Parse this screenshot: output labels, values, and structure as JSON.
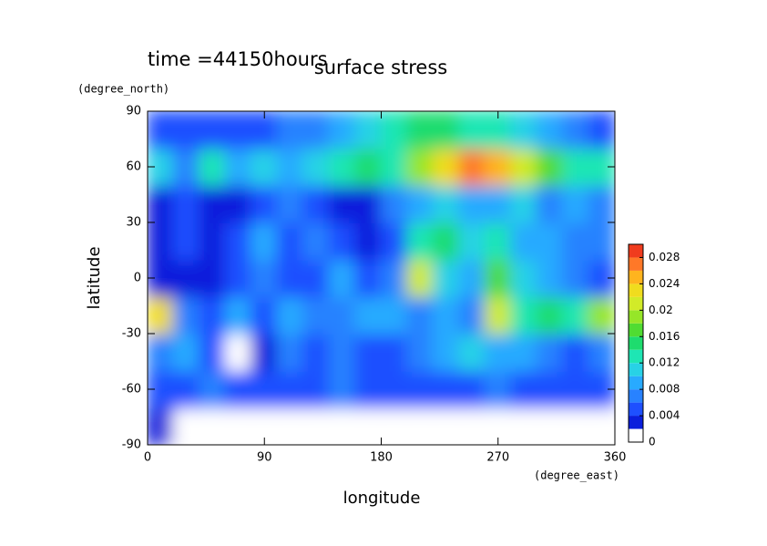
{
  "chart_data": {
    "type": "contour",
    "title": "surface stress",
    "annotation": "time =44150hours",
    "x_label": "longitude",
    "y_label": "latitude",
    "x_unit": "(degree_east)",
    "y_unit": "(degree_north)",
    "xlim": [
      0,
      360
    ],
    "ylim": [
      -90,
      90
    ],
    "xticks": [
      0,
      90,
      180,
      270,
      360
    ],
    "yticks": [
      -90,
      -60,
      -30,
      0,
      30,
      60,
      90
    ],
    "x": [
      10,
      30,
      50,
      70,
      90,
      110,
      130,
      150,
      170,
      190,
      210,
      230,
      250,
      270,
      290,
      310,
      330,
      350
    ],
    "y": [
      -80,
      -60,
      -40,
      -20,
      0,
      20,
      40,
      60,
      80
    ],
    "z": [
      [
        0.002,
        0.001,
        0,
        0,
        0,
        0,
        0,
        0,
        0,
        0,
        0,
        0,
        0,
        0,
        0,
        0,
        0,
        0
      ],
      [
        0.004,
        0.004,
        0.006,
        0.004,
        0.004,
        0.004,
        0.004,
        0.006,
        0.004,
        0.004,
        0.004,
        0.004,
        0.004,
        0.006,
        0.004,
        0.004,
        0.004,
        0.004
      ],
      [
        0.006,
        0.008,
        0.004,
        0.001,
        0.002,
        0.006,
        0.004,
        0.006,
        0.004,
        0.004,
        0.006,
        0.008,
        0.01,
        0.008,
        0.008,
        0.006,
        0.004,
        0.006
      ],
      [
        0.022,
        0.006,
        0.004,
        0.008,
        0.004,
        0.008,
        0.006,
        0.006,
        0.008,
        0.008,
        0.006,
        0.008,
        0.006,
        0.02,
        0.012,
        0.014,
        0.012,
        0.018
      ],
      [
        0.002,
        0.002,
        0.003,
        0.004,
        0.006,
        0.004,
        0.004,
        0.008,
        0.004,
        0.006,
        0.02,
        0.01,
        0.008,
        0.016,
        0.01,
        0.008,
        0.006,
        0.004
      ],
      [
        0.003,
        0.004,
        0.002,
        0.004,
        0.008,
        0.004,
        0.006,
        0.004,
        0.002,
        0.004,
        0.012,
        0.014,
        0.01,
        0.012,
        0.008,
        0.008,
        0.006,
        0.006
      ],
      [
        0.002,
        0.004,
        0.003,
        0.002,
        0.004,
        0.006,
        0.004,
        0.003,
        0.002,
        0.006,
        0.008,
        0.01,
        0.008,
        0.008,
        0.01,
        0.006,
        0.008,
        0.006
      ],
      [
        0.01,
        0.006,
        0.012,
        0.008,
        0.01,
        0.008,
        0.01,
        0.012,
        0.014,
        0.012,
        0.018,
        0.022,
        0.026,
        0.024,
        0.02,
        0.016,
        0.012,
        0.012
      ],
      [
        0.004,
        0.004,
        0.004,
        0.004,
        0.005,
        0.006,
        0.006,
        0.008,
        0.01,
        0.012,
        0.014,
        0.014,
        0.012,
        0.012,
        0.01,
        0.008,
        0.006,
        0.004
      ]
    ],
    "levels": [
      0,
      0.002,
      0.004,
      0.006,
      0.008,
      0.01,
      0.012,
      0.014,
      0.016,
      0.018,
      0.02,
      0.022,
      0.024,
      0.026,
      0.028,
      0.03
    ],
    "colors": [
      "#ffffff",
      "#0a1edc",
      "#1e50ff",
      "#2882ff",
      "#28aaff",
      "#28d2e6",
      "#1ee6b4",
      "#1edc6e",
      "#50dc32",
      "#96e628",
      "#d2eb28",
      "#f0dc1e",
      "#ffb41e",
      "#ff7828",
      "#f03c1e"
    ],
    "colorbar_ticks": [
      0,
      0.004,
      0.008,
      0.012,
      0.016,
      0.02,
      0.024,
      0.028
    ]
  }
}
